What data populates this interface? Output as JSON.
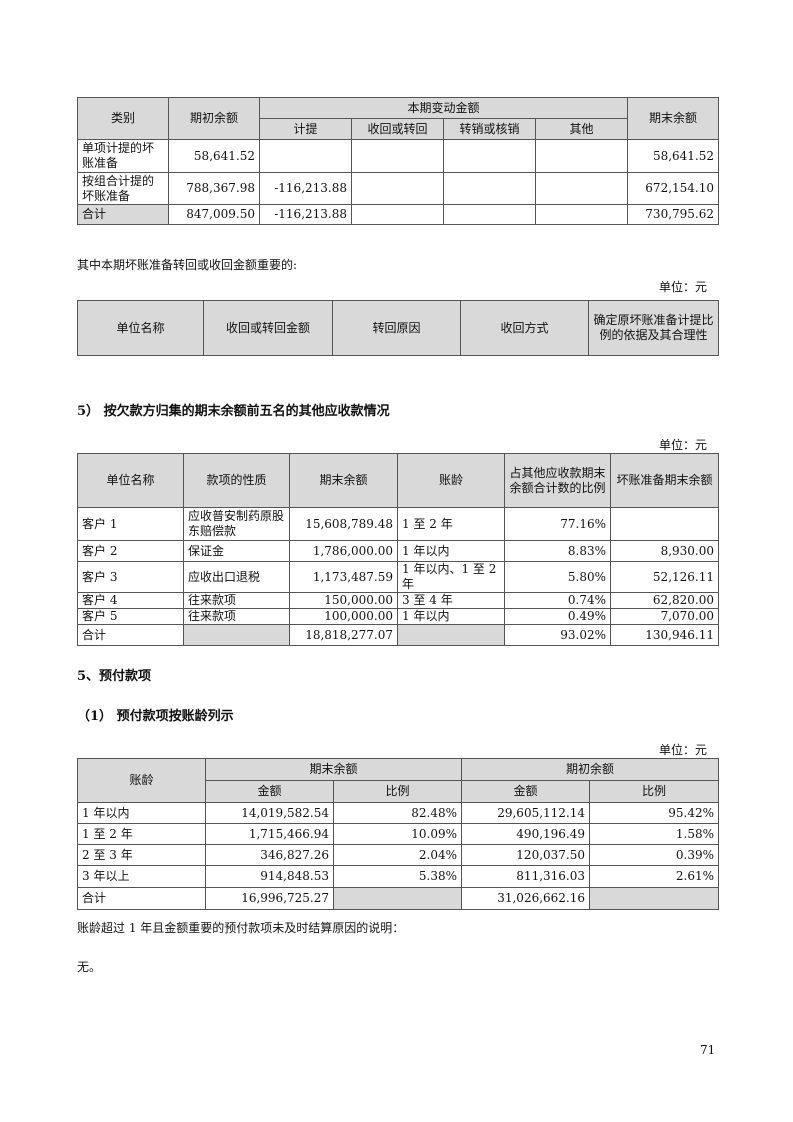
{
  "table1": {
    "headers": {
      "category": "类别",
      "opening": "期初余额",
      "change": "本期变动金额",
      "provision": "计提",
      "recovered": "收回或转回",
      "written_off": "转销或核销",
      "other": "其他",
      "closing": "期末余额"
    },
    "rows": [
      {
        "category": "单项计提的坏账准备",
        "opening": "58,641.52",
        "provision": "",
        "recovered": "",
        "written_off": "",
        "other": "",
        "closing": "58,641.52"
      },
      {
        "category": "按组合计提的坏账准备",
        "opening": "788,367.98",
        "provision": "-116,213.88",
        "recovered": "",
        "written_off": "",
        "other": "",
        "closing": "672,154.10"
      },
      {
        "category": "合计",
        "opening": "847,009.50",
        "provision": "-116,213.88",
        "recovered": "",
        "written_off": "",
        "other": "",
        "closing": "730,795.62"
      }
    ]
  },
  "note1": "其中本期坏账准备转回或收回金额重要的:",
  "unit_label": "单位：元",
  "table2": {
    "headers": [
      "单位名称",
      "收回或转回金额",
      "转回原因",
      "收回方式",
      "确定原坏账准备计提比例的依据及其合理性"
    ]
  },
  "section_5b_title": "5） 按欠款方归集的期末余额前五名的其他应收款情况",
  "table3": {
    "headers": [
      "单位名称",
      "款项的性质",
      "期末余额",
      "账龄",
      "占其他应收款期末余额合计数的比例",
      "坏账准备期末余额"
    ],
    "rows": [
      [
        "客户 1",
        "应收普安制药原股东赔偿款",
        "15,608,789.48",
        "1 至 2 年",
        "77.16%",
        ""
      ],
      [
        "客户 2",
        "保证金",
        "1,786,000.00",
        "1 年以内",
        "8.83%",
        "8,930.00"
      ],
      [
        "客户 3",
        "应收出口退税",
        "1,173,487.59",
        "1 年以内、1 至 2 年",
        "5.80%",
        "52,126.11"
      ],
      [
        "客户 4",
        "往来款项",
        "150,000.00",
        "3 至 4 年",
        "0.74%",
        "62,820.00"
      ],
      [
        "客户 5",
        "往来款项",
        "100,000.00",
        "1 年以内",
        "0.49%",
        "7,070.00"
      ]
    ],
    "total": {
      "label": "合计",
      "closing": "18,818,277.07",
      "ratio": "93.02%",
      "bad_debt": "130,946.11"
    }
  },
  "section_5_title": "5、预付款项",
  "section_5_1_title": "（1） 预付款项按账龄列示",
  "table4": {
    "headers": {
      "aging": "账龄",
      "closing": "期末余额",
      "opening": "期初余额",
      "amount": "金额",
      "ratio": "比例"
    },
    "rows": [
      [
        "1 年以内",
        "14,019,582.54",
        "82.48%",
        "29,605,112.14",
        "95.42%"
      ],
      [
        "1 至 2 年",
        "1,715,466.94",
        "10.09%",
        "490,196.49",
        "1.58%"
      ],
      [
        "2 至 3 年",
        "346,827.26",
        "2.04%",
        "120,037.50",
        "0.39%"
      ],
      [
        "3 年以上",
        "914,848.53",
        "5.38%",
        "811,316.03",
        "2.61%"
      ]
    ],
    "total": {
      "label": "合计",
      "closing": "16,996,725.27",
      "opening": "31,026,662.16"
    }
  },
  "note2": "账龄超过 1 年且金额重要的预付款项未及时结算原因的说明：",
  "note3": "无。",
  "page_number": "71"
}
